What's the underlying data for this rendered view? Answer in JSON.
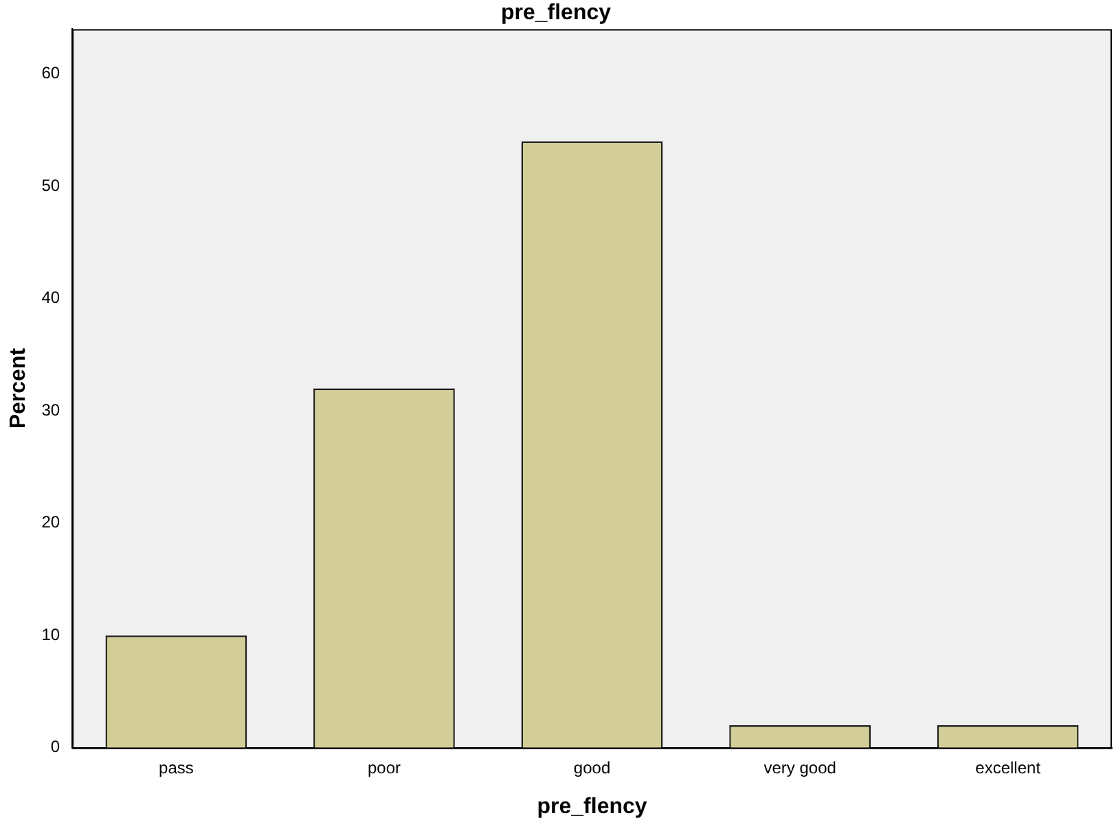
{
  "chart_data": {
    "type": "bar",
    "title": "pre_flency",
    "xlabel": "pre_flency",
    "ylabel": "Percent",
    "categories": [
      "pass",
      "poor",
      "good",
      "very good",
      "excellent"
    ],
    "values": [
      10,
      32,
      54,
      2,
      2
    ],
    "color": "#d3ce97",
    "ylim": [
      0,
      64
    ],
    "yticks": [
      0,
      10,
      20,
      30,
      40,
      50,
      60
    ],
    "grid": false,
    "legend": false
  }
}
